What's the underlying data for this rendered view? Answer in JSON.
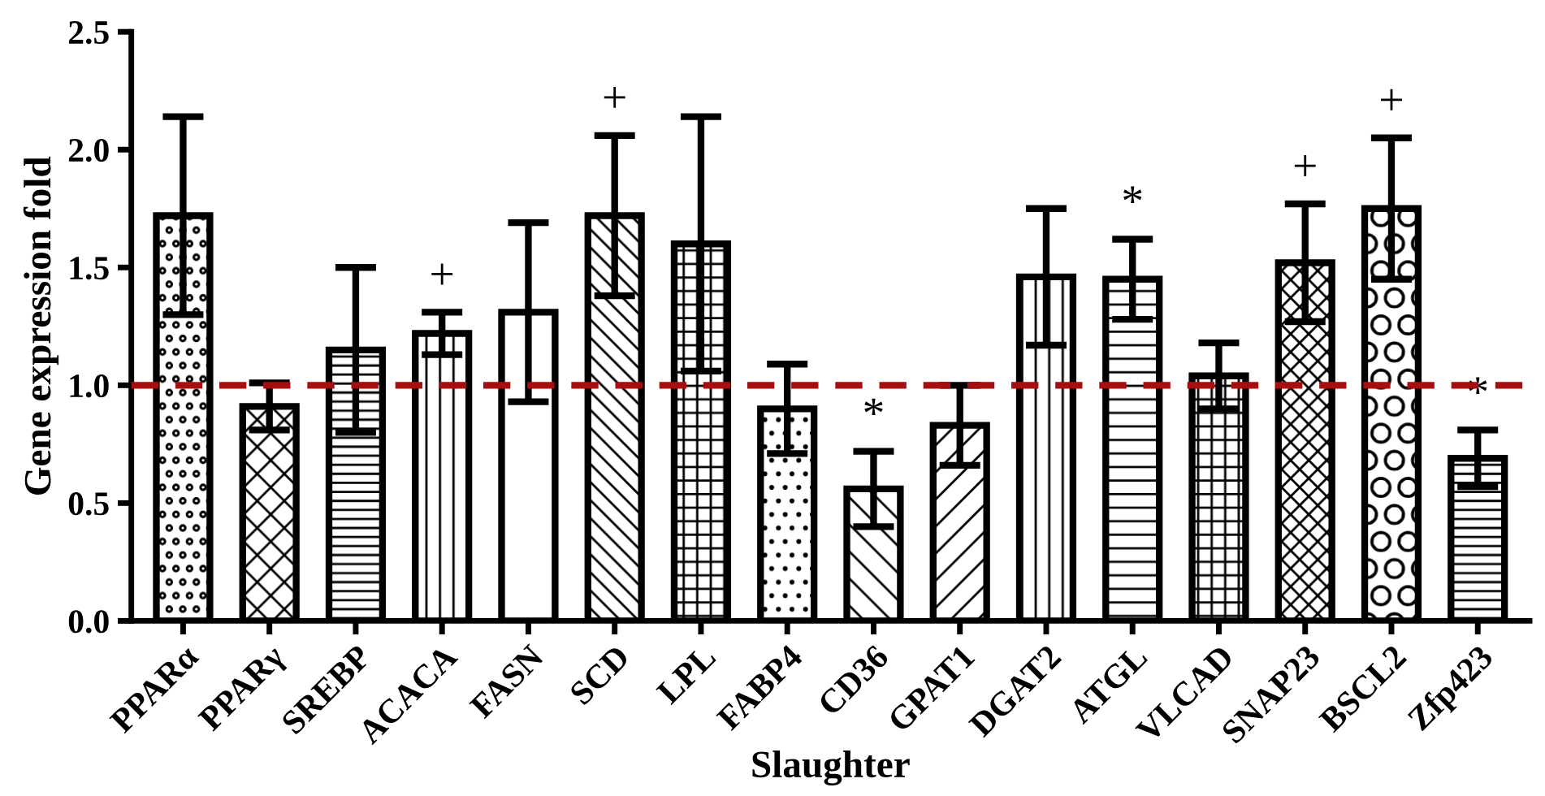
{
  "chart_data": {
    "type": "bar",
    "categories": [
      "PPARα",
      "PPARγ",
      "SREBP",
      "ACACA",
      "FASN",
      "SCD",
      "LPL",
      "FABP4",
      "CD36",
      "GPAT1",
      "DGAT2",
      "ATGL",
      "VLCAD",
      "SNAP23",
      "BSCL2",
      "Zfp423"
    ],
    "values": [
      1.72,
      0.91,
      1.15,
      1.22,
      1.31,
      1.72,
      1.6,
      0.9,
      0.56,
      0.83,
      1.46,
      1.45,
      1.04,
      1.52,
      1.75,
      0.69
    ],
    "errors": [
      0.42,
      0.1,
      0.35,
      0.09,
      0.38,
      0.34,
      0.54,
      0.19,
      0.16,
      0.17,
      0.29,
      0.17,
      0.14,
      0.25,
      0.3,
      0.12
    ],
    "color": "#ffffff",
    "xlabel": "Slaughter",
    "ylabel": "Gene expression fold",
    "ylim": [
      0,
      2.5
    ],
    "yticks": [
      {
        "value": 0,
        "label": "0.0"
      },
      {
        "value": 0.5,
        "label": "0.5"
      },
      {
        "value": 1,
        "label": "1.0"
      },
      {
        "value": 1.5,
        "label": "1.5"
      },
      {
        "value": 2,
        "label": "2.0"
      },
      {
        "value": 2.5,
        "label": "2.5"
      }
    ],
    "grid": false,
    "ref_lines": [
      {
        "axis": "y",
        "value": 1,
        "color": "#a50f0f",
        "line_style": "dashed"
      }
    ],
    "value_labels": [
      null,
      null,
      null,
      "+",
      null,
      "+",
      null,
      null,
      "*",
      null,
      null,
      "*",
      null,
      "+",
      "+",
      "*"
    ]
  }
}
